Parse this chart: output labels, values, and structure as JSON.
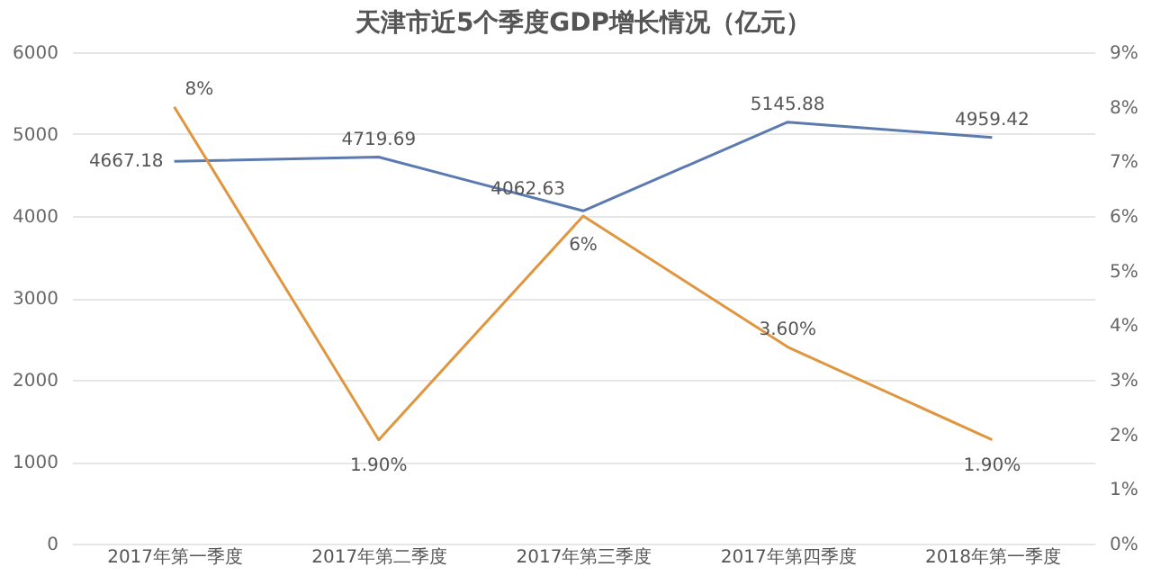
{
  "chart_data": {
    "type": "line",
    "title": "天津市近5个季度GDP增长情况（亿元）",
    "categories": [
      "2017年第一季度",
      "2017年第二季度",
      "2017年第三季度",
      "2017年第四季度",
      "2018年第一季度"
    ],
    "series": [
      {
        "color": "#5b7bb0",
        "values": [
          4667.18,
          4719.69,
          4062.63,
          5145.88,
          4959.42
        ],
        "value_labels": [
          "4667.18",
          "4719.69",
          "4062.63",
          "5145.88",
          "4959.42"
        ]
      },
      {
        "color": "#e0963f",
        "axis": "y2",
        "values": [
          8,
          1.9,
          6,
          3.6,
          1.9
        ],
        "value_labels": [
          "8%",
          "1.90%",
          "6%",
          "3.60%",
          "1.90%"
        ]
      }
    ],
    "ylim": [
      0,
      6000
    ],
    "yticks": [
      0,
      1000,
      2000,
      3000,
      4000,
      5000,
      6000
    ],
    "y2lim": [
      0,
      9
    ],
    "y2ticks": [
      {
        "value": 0,
        "label": "0%"
      },
      {
        "value": 1,
        "label": "1%"
      },
      {
        "value": 2,
        "label": "2%"
      },
      {
        "value": 3,
        "label": "3%"
      },
      {
        "value": 4,
        "label": "4%"
      },
      {
        "value": 5,
        "label": "5%"
      },
      {
        "value": 6,
        "label": "6%"
      },
      {
        "value": 7,
        "label": "7%"
      },
      {
        "value": 8,
        "label": "8%"
      },
      {
        "value": 9,
        "label": "9%"
      }
    ],
    "grid": "y",
    "marker": "none",
    "line_style": "solid"
  }
}
